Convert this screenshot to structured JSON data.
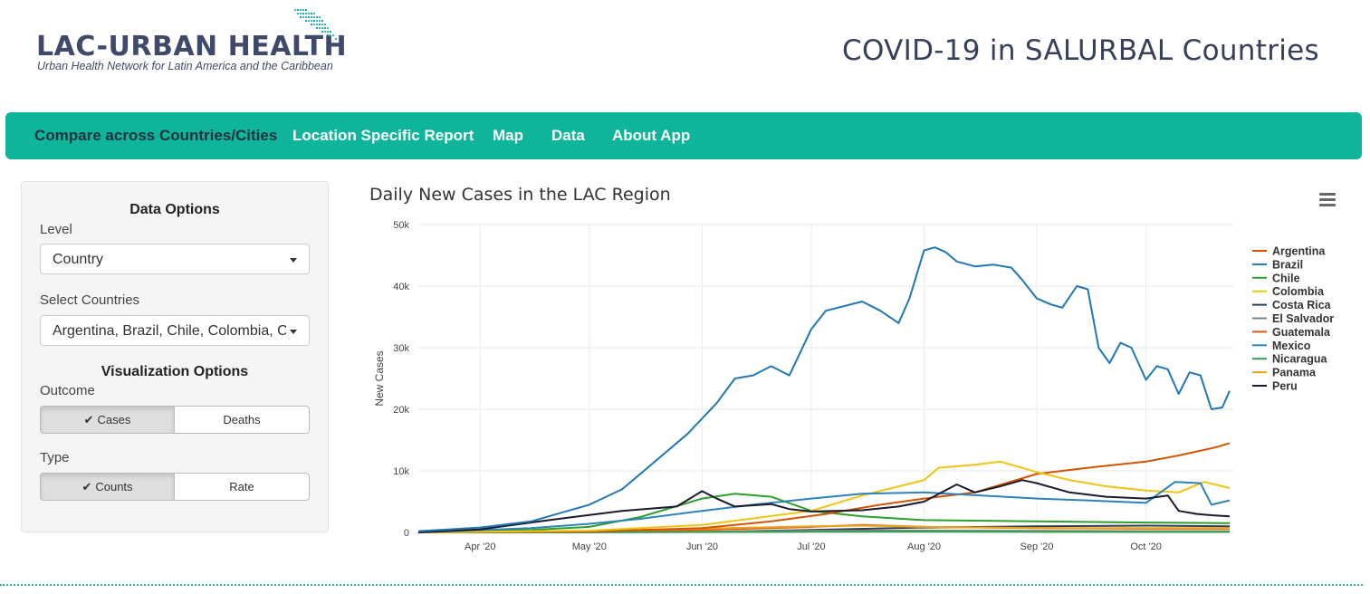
{
  "header": {
    "logo_text": "LAC-URBAN HEALTH",
    "logo_subtitle": "Urban Health Network for Latin America and the Caribbean",
    "app_title": "COVID-19 in SALURBAL Countries"
  },
  "navbar": {
    "items": [
      {
        "label": "Compare across Countries/Cities"
      },
      {
        "label": "Location Specific Report"
      },
      {
        "label": "Map"
      },
      {
        "label": "Data"
      },
      {
        "label": "About App"
      }
    ]
  },
  "sidebar": {
    "data_options_title": "Data Options",
    "level_label": "Level",
    "level_value": "Country",
    "countries_label": "Select Countries",
    "countries_value": "Argentina, Brazil, Chile, Colombia, Costa Rica, El Salvador, Guatemala, Mexico, Nicaragua, Panama, Peru",
    "visualization_title": "Visualization Options",
    "outcome_label": "Outcome",
    "outcome_options": [
      "Cases",
      "Deaths"
    ],
    "outcome_selected": "Cases",
    "type_label": "Type",
    "type_options": [
      "Counts",
      "Rate"
    ],
    "type_selected": "Counts"
  },
  "chart_data": {
    "type": "line",
    "title": "Daily New Cases in the LAC Region",
    "xlabel": "",
    "ylabel": "New Cases",
    "xlim": [
      "2020-03-15",
      "2020-10-25"
    ],
    "ylim": [
      0,
      50000
    ],
    "y_ticks": [
      0,
      10000,
      20000,
      30000,
      40000,
      50000
    ],
    "y_tick_labels": [
      "0",
      "10k",
      "20k",
      "30k",
      "40k",
      "50k"
    ],
    "x_ticks": [
      "2020-04-01",
      "2020-05-01",
      "2020-06-01",
      "2020-07-01",
      "2020-08-01",
      "2020-09-01",
      "2020-10-01"
    ],
    "x_tick_labels": [
      "Apr '20",
      "May '20",
      "Jun '20",
      "Jul '20",
      "Aug '20",
      "Sep '20",
      "Oct '20"
    ],
    "grid": true,
    "legend_position": "right",
    "series": [
      {
        "name": "Argentina",
        "color": "#d35400",
        "points": [
          [
            "2020-03-15",
            0
          ],
          [
            "2020-05-01",
            150
          ],
          [
            "2020-06-01",
            700
          ],
          [
            "2020-06-20",
            1800
          ],
          [
            "2020-07-05",
            3000
          ],
          [
            "2020-07-20",
            4500
          ],
          [
            "2020-08-01",
            5500
          ],
          [
            "2020-08-15",
            6500
          ],
          [
            "2020-09-01",
            9500
          ],
          [
            "2020-09-15",
            10500
          ],
          [
            "2020-10-01",
            11500
          ],
          [
            "2020-10-10",
            12500
          ],
          [
            "2020-10-20",
            13800
          ],
          [
            "2020-10-24",
            14500
          ]
        ]
      },
      {
        "name": "Brazil",
        "color": "#1f77b4",
        "points": [
          [
            "2020-03-15",
            200
          ],
          [
            "2020-04-01",
            800
          ],
          [
            "2020-04-15",
            1800
          ],
          [
            "2020-05-01",
            4500
          ],
          [
            "2020-05-10",
            7000
          ],
          [
            "2020-05-20",
            12000
          ],
          [
            "2020-05-28",
            16000
          ],
          [
            "2020-06-05",
            21000
          ],
          [
            "2020-06-10",
            25000
          ],
          [
            "2020-06-15",
            25500
          ],
          [
            "2020-06-20",
            27000
          ],
          [
            "2020-06-25",
            25500
          ],
          [
            "2020-07-01",
            33000
          ],
          [
            "2020-07-05",
            36000
          ],
          [
            "2020-07-15",
            37500
          ],
          [
            "2020-07-20",
            36000
          ],
          [
            "2020-07-25",
            34000
          ],
          [
            "2020-07-28",
            38000
          ],
          [
            "2020-08-01",
            45800
          ],
          [
            "2020-08-04",
            46300
          ],
          [
            "2020-08-07",
            45500
          ],
          [
            "2020-08-10",
            44000
          ],
          [
            "2020-08-15",
            43200
          ],
          [
            "2020-08-20",
            43500
          ],
          [
            "2020-08-25",
            43000
          ],
          [
            "2020-08-28",
            41000
          ],
          [
            "2020-09-01",
            38000
          ],
          [
            "2020-09-05",
            37000
          ],
          [
            "2020-09-08",
            36500
          ],
          [
            "2020-09-12",
            40000
          ],
          [
            "2020-09-15",
            39500
          ],
          [
            "2020-09-18",
            30000
          ],
          [
            "2020-09-21",
            27500
          ],
          [
            "2020-09-24",
            30800
          ],
          [
            "2020-09-27",
            30000
          ],
          [
            "2020-10-01",
            24800
          ],
          [
            "2020-10-04",
            27000
          ],
          [
            "2020-10-07",
            26500
          ],
          [
            "2020-10-10",
            22500
          ],
          [
            "2020-10-13",
            26000
          ],
          [
            "2020-10-16",
            25500
          ],
          [
            "2020-10-19",
            20000
          ],
          [
            "2020-10-22",
            20300
          ],
          [
            "2020-10-24",
            23000
          ]
        ]
      },
      {
        "name": "Chile",
        "color": "#2ca02c",
        "points": [
          [
            "2020-03-15",
            0
          ],
          [
            "2020-04-15",
            400
          ],
          [
            "2020-05-01",
            900
          ],
          [
            "2020-05-15",
            2500
          ],
          [
            "2020-06-01",
            5500
          ],
          [
            "2020-06-10",
            6300
          ],
          [
            "2020-06-20",
            5800
          ],
          [
            "2020-07-01",
            3500
          ],
          [
            "2020-07-15",
            2600
          ],
          [
            "2020-08-01",
            2000
          ],
          [
            "2020-09-01",
            1800
          ],
          [
            "2020-10-01",
            1600
          ],
          [
            "2020-10-24",
            1500
          ]
        ]
      },
      {
        "name": "Colombia",
        "color": "#f1c40f",
        "points": [
          [
            "2020-03-15",
            0
          ],
          [
            "2020-05-01",
            300
          ],
          [
            "2020-06-01",
            1200
          ],
          [
            "2020-07-01",
            3500
          ],
          [
            "2020-07-15",
            6000
          ],
          [
            "2020-08-01",
            8500
          ],
          [
            "2020-08-05",
            10500
          ],
          [
            "2020-08-15",
            11000
          ],
          [
            "2020-08-22",
            11500
          ],
          [
            "2020-09-01",
            9800
          ],
          [
            "2020-09-10",
            8500
          ],
          [
            "2020-09-20",
            7500
          ],
          [
            "2020-10-01",
            6800
          ],
          [
            "2020-10-10",
            6500
          ],
          [
            "2020-10-17",
            8200
          ],
          [
            "2020-10-24",
            7200
          ]
        ]
      },
      {
        "name": "Costa Rica",
        "color": "#2c3e50",
        "points": [
          [
            "2020-03-15",
            0
          ],
          [
            "2020-06-01",
            80
          ],
          [
            "2020-07-01",
            400
          ],
          [
            "2020-08-01",
            800
          ],
          [
            "2020-09-01",
            1000
          ],
          [
            "2020-10-01",
            1100
          ],
          [
            "2020-10-24",
            1000
          ]
        ]
      },
      {
        "name": "El Salvador",
        "color": "#7f7f7f",
        "points": [
          [
            "2020-03-15",
            0
          ],
          [
            "2020-06-01",
            100
          ],
          [
            "2020-07-01",
            300
          ],
          [
            "2020-08-01",
            300
          ],
          [
            "2020-09-01",
            250
          ],
          [
            "2020-10-01",
            200
          ],
          [
            "2020-10-24",
            200
          ]
        ]
      },
      {
        "name": "Guatemala",
        "color": "#e6550d",
        "points": [
          [
            "2020-03-15",
            0
          ],
          [
            "2020-05-01",
            100
          ],
          [
            "2020-06-01",
            400
          ],
          [
            "2020-07-01",
            900
          ],
          [
            "2020-07-15",
            1200
          ],
          [
            "2020-08-01",
            900
          ],
          [
            "2020-09-01",
            700
          ],
          [
            "2020-10-01",
            600
          ],
          [
            "2020-10-24",
            600
          ]
        ]
      },
      {
        "name": "Mexico",
        "color": "#2b83ba",
        "points": [
          [
            "2020-03-15",
            0
          ],
          [
            "2020-04-15",
            700
          ],
          [
            "2020-05-01",
            1400
          ],
          [
            "2020-05-15",
            2200
          ],
          [
            "2020-06-01",
            3500
          ],
          [
            "2020-06-15",
            4500
          ],
          [
            "2020-07-01",
            5500
          ],
          [
            "2020-07-15",
            6300
          ],
          [
            "2020-08-01",
            6500
          ],
          [
            "2020-08-10",
            6200
          ],
          [
            "2020-09-01",
            5500
          ],
          [
            "2020-09-15",
            5200
          ],
          [
            "2020-10-01",
            4800
          ],
          [
            "2020-10-09",
            8200
          ],
          [
            "2020-10-16",
            8000
          ],
          [
            "2020-10-19",
            4500
          ],
          [
            "2020-10-24",
            5200
          ]
        ]
      },
      {
        "name": "Nicaragua",
        "color": "#31a354",
        "points": [
          [
            "2020-03-15",
            0
          ],
          [
            "2020-06-01",
            60
          ],
          [
            "2020-07-01",
            100
          ],
          [
            "2020-08-01",
            100
          ],
          [
            "2020-10-24",
            80
          ]
        ]
      },
      {
        "name": "Panama",
        "color": "#e8a317",
        "points": [
          [
            "2020-03-15",
            0
          ],
          [
            "2020-05-01",
            200
          ],
          [
            "2020-06-01",
            600
          ],
          [
            "2020-07-01",
            1000
          ],
          [
            "2020-07-15",
            1100
          ],
          [
            "2020-08-01",
            900
          ],
          [
            "2020-09-01",
            700
          ],
          [
            "2020-10-01",
            700
          ],
          [
            "2020-10-24",
            700
          ]
        ]
      },
      {
        "name": "Peru",
        "color": "#1a1a2e",
        "points": [
          [
            "2020-03-15",
            0
          ],
          [
            "2020-04-01",
            500
          ],
          [
            "2020-04-20",
            2000
          ],
          [
            "2020-05-10",
            3500
          ],
          [
            "2020-05-25",
            4200
          ],
          [
            "2020-06-01",
            6700
          ],
          [
            "2020-06-05",
            5500
          ],
          [
            "2020-06-10",
            4200
          ],
          [
            "2020-06-20",
            4600
          ],
          [
            "2020-06-25",
            3800
          ],
          [
            "2020-07-01",
            3400
          ],
          [
            "2020-07-15",
            3600
          ],
          [
            "2020-07-25",
            4200
          ],
          [
            "2020-08-01",
            5000
          ],
          [
            "2020-08-10",
            7800
          ],
          [
            "2020-08-15",
            6500
          ],
          [
            "2020-08-22",
            7500
          ],
          [
            "2020-08-28",
            8500
          ],
          [
            "2020-09-01",
            8000
          ],
          [
            "2020-09-10",
            6500
          ],
          [
            "2020-09-20",
            5800
          ],
          [
            "2020-10-01",
            5500
          ],
          [
            "2020-10-07",
            6000
          ],
          [
            "2020-10-10",
            3500
          ],
          [
            "2020-10-15",
            3000
          ],
          [
            "2020-10-19",
            2800
          ],
          [
            "2020-10-24",
            2600
          ]
        ]
      }
    ]
  }
}
